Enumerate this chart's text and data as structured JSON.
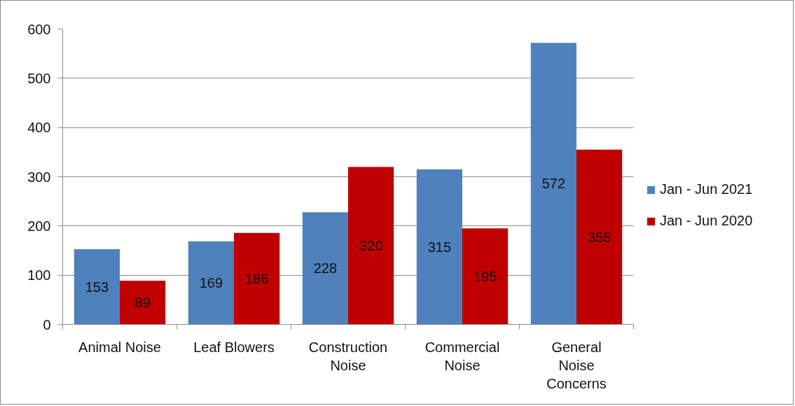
{
  "chart_data": {
    "type": "bar",
    "categories": [
      "Animal Noise",
      "Leaf Blowers",
      "Construction\nNoise",
      "Commercial\nNoise",
      "General\nNoise\nConcerns"
    ],
    "series": [
      {
        "name": "Jan - Jun 2021",
        "color": "#4f81bd",
        "values": [
          153,
          169,
          228,
          315,
          572
        ]
      },
      {
        "name": "Jan - Jun 2020",
        "color": "#c00000",
        "values": [
          89,
          186,
          320,
          195,
          355
        ]
      }
    ],
    "ylim": [
      0,
      600
    ],
    "yticks": [
      0,
      100,
      200,
      300,
      400,
      500,
      600
    ],
    "grid": "y",
    "legend": "right",
    "data_labels": true
  }
}
